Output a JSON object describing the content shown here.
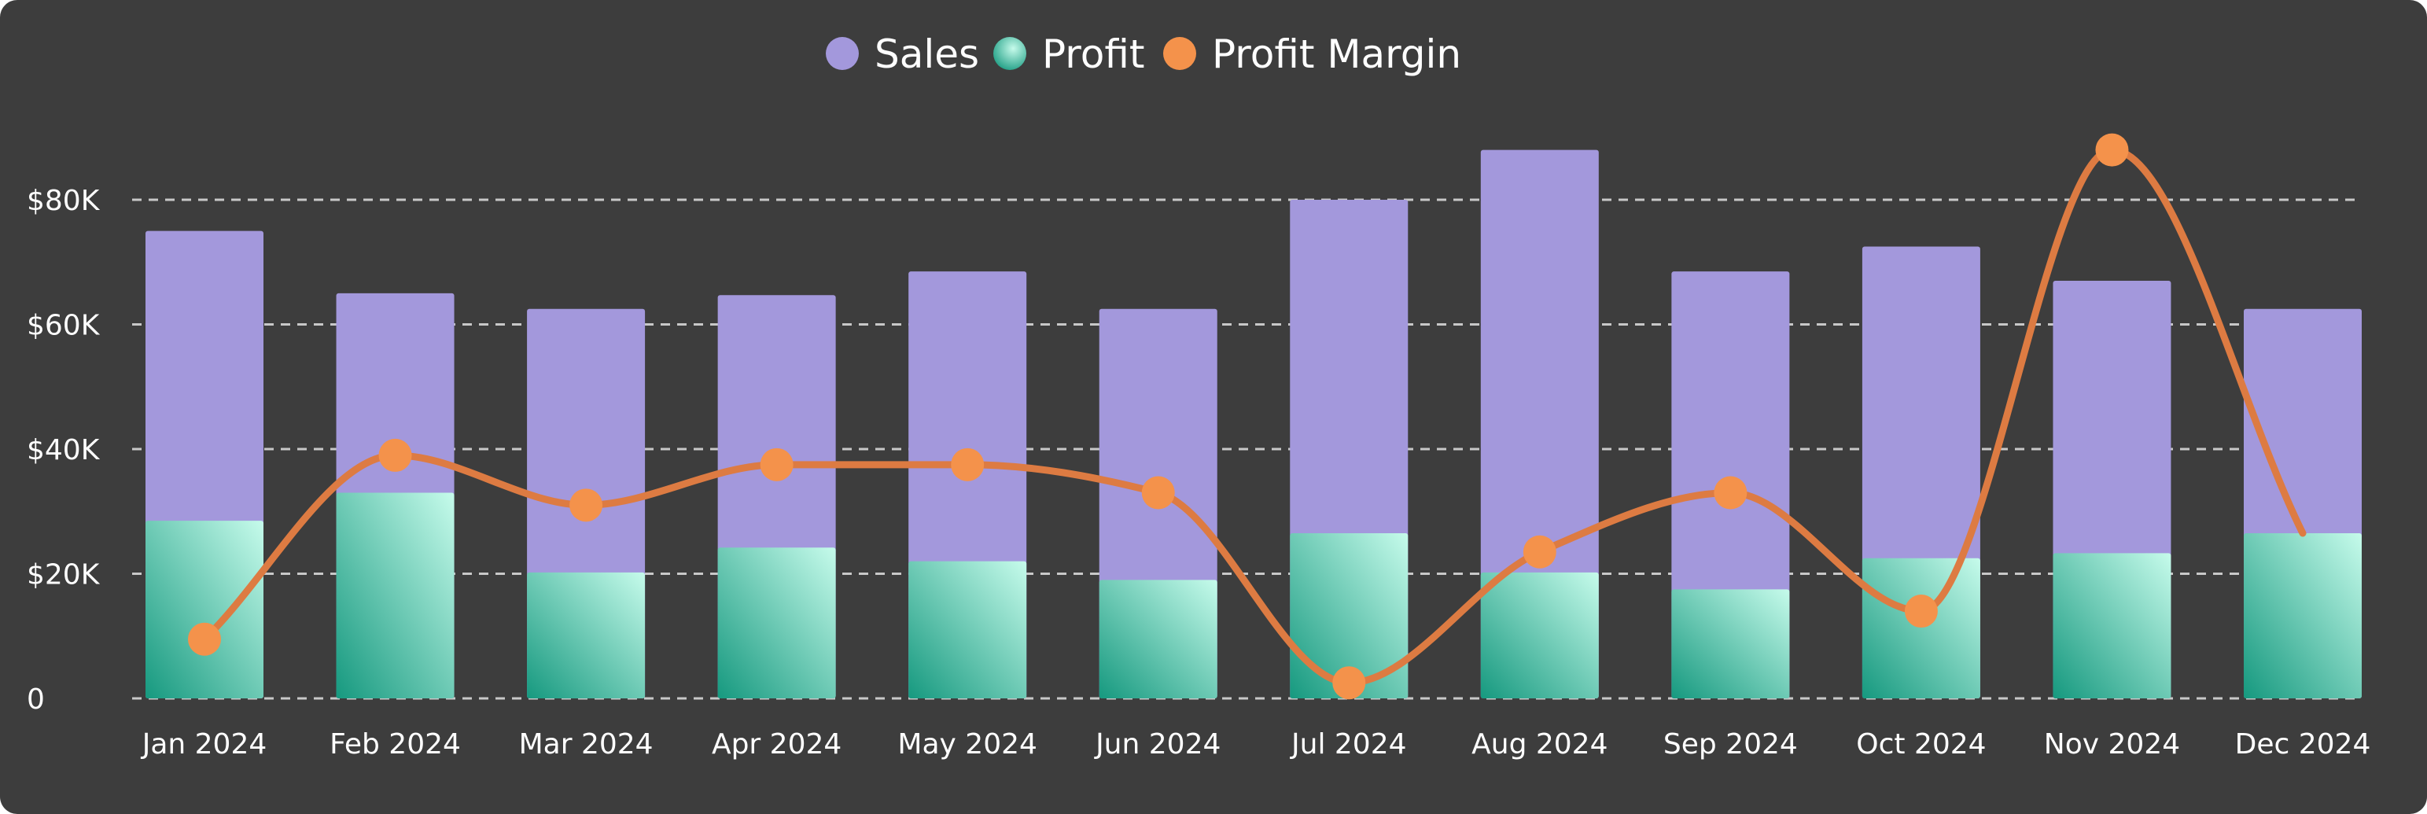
{
  "chart_data": {
    "type": "bar",
    "categories": [
      "Jan 2024",
      "Feb 2024",
      "Mar 2024",
      "Apr 2024",
      "May 2024",
      "Jun 2024",
      "Jul 2024",
      "Aug 2024",
      "Sep 2024",
      "Oct 2024",
      "Nov 2024",
      "Dec 2024"
    ],
    "series": [
      {
        "name": "Sales",
        "type": "bar",
        "color": "#a398dc",
        "values": [
          75000,
          65000,
          62500,
          64700,
          68500,
          62500,
          80000,
          88000,
          68500,
          72500,
          67000,
          62500
        ]
      },
      {
        "name": "Profit",
        "type": "bar",
        "color": "#5fcfb0",
        "values": [
          28500,
          33000,
          20200,
          24200,
          22000,
          19000,
          26500,
          20200,
          17500,
          22500,
          23300,
          26500
        ]
      },
      {
        "name": "Profit Margin",
        "type": "line",
        "color": "#f4924b",
        "values": [
          9500,
          39000,
          31000,
          37500,
          37500,
          33000,
          2500,
          23500,
          33000,
          14000,
          88000,
          26500
        ]
      }
    ],
    "yaxis": {
      "min": 0,
      "max": 90000,
      "ticks": [
        0,
        20000,
        40000,
        60000,
        80000
      ],
      "tick_labels": [
        "0",
        "$20K",
        "$40K",
        "$60K",
        "$80K"
      ]
    },
    "grid": true,
    "legend_position": "top-center",
    "background": "#3d3d3d",
    "title": "",
    "xlabel": "",
    "ylabel": ""
  }
}
